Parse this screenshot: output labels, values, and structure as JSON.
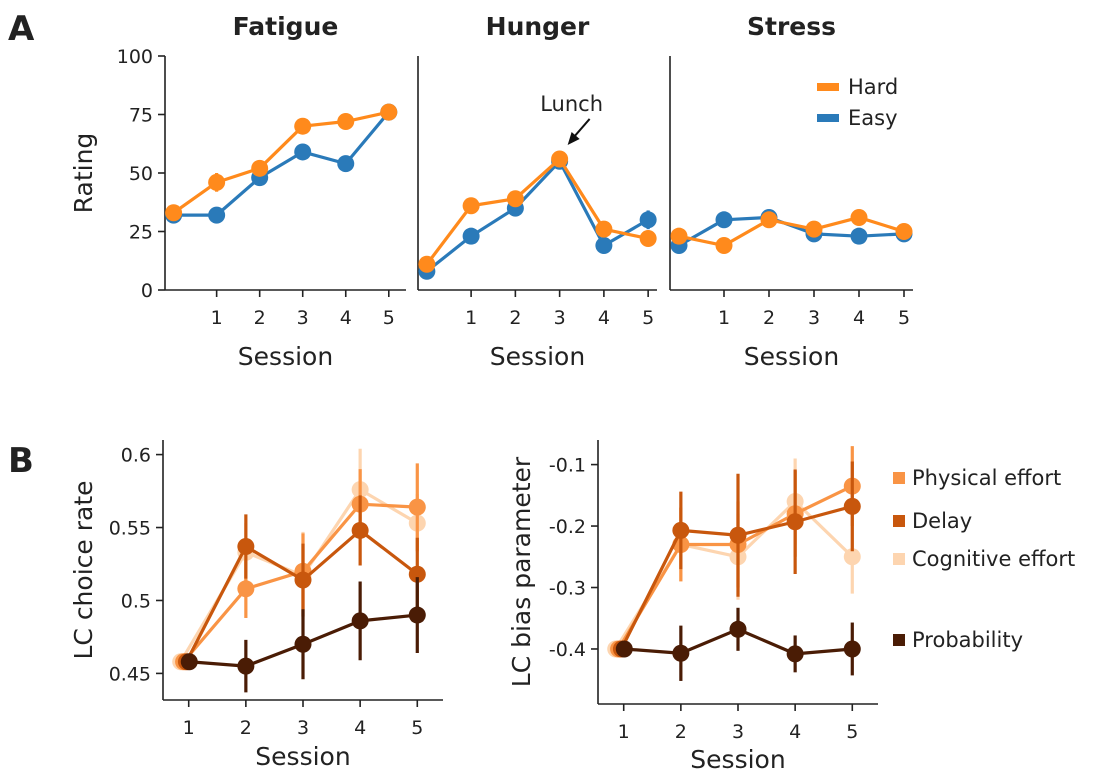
{
  "panel_labels": [
    "A",
    "B"
  ],
  "chart_data": [
    {
      "type": "line",
      "panel": "A",
      "title": "Fatigue",
      "xlabel": "Session",
      "ylabel": "Rating",
      "x": [
        0,
        1,
        2,
        3,
        4,
        5
      ],
      "xticks": [
        1,
        2,
        3,
        4,
        5
      ],
      "ylim": [
        0,
        100
      ],
      "yticks": [
        0,
        25,
        50,
        75,
        100
      ],
      "series": [
        {
          "name": "Easy",
          "color": "#2a7ab9",
          "values": [
            32,
            32,
            48,
            59,
            54,
            76
          ],
          "err": [
            2,
            2,
            2,
            2,
            2,
            2
          ]
        },
        {
          "name": "Hard",
          "color": "#ff8a1c",
          "values": [
            33,
            46,
            52,
            70,
            72,
            76
          ],
          "err": [
            2,
            4,
            3,
            2,
            2,
            2
          ]
        }
      ]
    },
    {
      "type": "line",
      "panel": "A",
      "title": "Hunger",
      "xlabel": "Session",
      "ylabel": "",
      "x": [
        0,
        1,
        2,
        3,
        4,
        5
      ],
      "xticks": [
        1,
        2,
        3,
        4,
        5
      ],
      "ylim": [
        0,
        100
      ],
      "yticks": [],
      "annotation": {
        "text": "Lunch",
        "x": 3,
        "y": 56
      },
      "series": [
        {
          "name": "Easy",
          "color": "#2a7ab9",
          "values": [
            8,
            23,
            35,
            55,
            19,
            30
          ],
          "err": [
            2,
            2,
            2,
            2,
            2,
            4
          ]
        },
        {
          "name": "Hard",
          "color": "#ff8a1c",
          "values": [
            11,
            36,
            39,
            56,
            26,
            22
          ],
          "err": [
            3,
            2,
            2,
            3,
            2,
            2
          ]
        }
      ]
    },
    {
      "type": "line",
      "panel": "A",
      "title": "Stress",
      "xlabel": "Session",
      "ylabel": "",
      "x": [
        0,
        1,
        2,
        3,
        4,
        5
      ],
      "xticks": [
        1,
        2,
        3,
        4,
        5
      ],
      "ylim": [
        0,
        100
      ],
      "yticks": [],
      "legend": {
        "position": "top-right",
        "entries": [
          "Hard",
          "Easy"
        ]
      },
      "series": [
        {
          "name": "Easy",
          "color": "#2a7ab9",
          "values": [
            19,
            30,
            31,
            24,
            23,
            24
          ],
          "err": [
            2,
            2,
            2,
            2,
            2,
            2
          ]
        },
        {
          "name": "Hard",
          "color": "#ff8a1c",
          "values": [
            23,
            19,
            30,
            26,
            31,
            25
          ],
          "err": [
            2,
            2,
            2,
            3,
            3,
            2
          ]
        }
      ]
    },
    {
      "type": "line",
      "panel": "B",
      "title": "",
      "xlabel": "Session",
      "ylabel": "LC choice rate",
      "x": [
        1,
        2,
        3,
        4,
        5
      ],
      "xticks": [
        1,
        2,
        3,
        4,
        5
      ],
      "ylim": [
        0.44,
        0.61
      ],
      "yticks": [
        0.45,
        0.5,
        0.55,
        0.6
      ],
      "ytick_labels": [
        "0.45",
        "0.5",
        "0.55",
        "0.6"
      ],
      "series": [
        {
          "name": "Cognitive effort",
          "color": "#fdd5b0",
          "values": [
            0.458,
            0.533,
            0.517,
            0.576,
            0.553
          ],
          "err": [
            0,
            0.02,
            0.03,
            0.028,
            0.02
          ]
        },
        {
          "name": "Physical effort",
          "color": "#f99445",
          "values": [
            0.458,
            0.508,
            0.52,
            0.566,
            0.564
          ],
          "err": [
            0,
            0.02,
            0.026,
            0.024,
            0.03
          ]
        },
        {
          "name": "Delay",
          "color": "#c8570d",
          "values": [
            0.458,
            0.537,
            0.514,
            0.548,
            0.518
          ],
          "err": [
            0,
            0.022,
            0.025,
            0.024,
            0.025
          ]
        },
        {
          "name": "Probability",
          "color": "#4a1c05",
          "values": [
            0.458,
            0.455,
            0.47,
            0.486,
            0.49
          ],
          "err": [
            0,
            0.018,
            0.024,
            0.027,
            0.026
          ]
        }
      ]
    },
    {
      "type": "line",
      "panel": "B",
      "title": "",
      "xlabel": "Session",
      "ylabel": "LC bias parameter",
      "x": [
        1,
        2,
        3,
        4,
        5
      ],
      "xticks": [
        1,
        2,
        3,
        4,
        5
      ],
      "ylim": [
        -0.47,
        -0.06
      ],
      "yticks": [
        -0.4,
        -0.3,
        -0.2,
        -0.1
      ],
      "ytick_labels": [
        "-0.4",
        "-0.3",
        "-0.2",
        "-0.1"
      ],
      "legend": {
        "position": "right",
        "entries": [
          "Physical effort",
          "Delay",
          "Cognitive effort",
          "Probability"
        ]
      },
      "series": [
        {
          "name": "Cognitive effort",
          "color": "#fdd5b0",
          "values": [
            -0.4,
            -0.23,
            -0.25,
            -0.16,
            -0.25
          ],
          "err": [
            0,
            0.06,
            0.07,
            0.07,
            0.06
          ]
        },
        {
          "name": "Physical effort",
          "color": "#f99445",
          "values": [
            -0.4,
            -0.23,
            -0.23,
            -0.18,
            -0.135
          ],
          "err": [
            0,
            0.06,
            0.07,
            0.07,
            0.065
          ]
        },
        {
          "name": "Delay",
          "color": "#c8570d",
          "values": [
            -0.4,
            -0.207,
            -0.215,
            -0.193,
            -0.168
          ],
          "err": [
            0,
            0.063,
            0.1,
            0.085,
            0.073
          ]
        },
        {
          "name": "Probability",
          "color": "#4a1c05",
          "values": [
            -0.4,
            -0.407,
            -0.368,
            -0.408,
            -0.4
          ],
          "err": [
            0,
            0.045,
            0.035,
            0.03,
            0.043
          ]
        }
      ]
    }
  ]
}
